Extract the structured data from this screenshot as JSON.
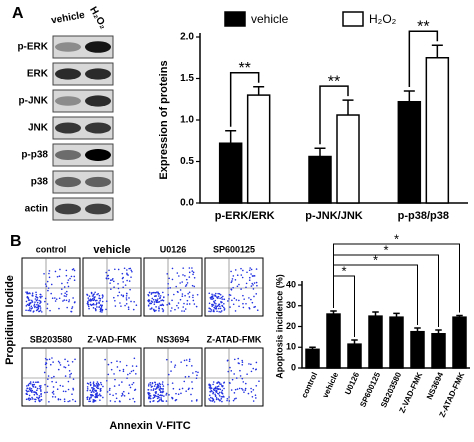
{
  "panel_a": {
    "label": "A",
    "lanes": [
      "vehicle",
      "H₂O₂"
    ],
    "rows": [
      "p-ERK",
      "ERK",
      "p-JNK",
      "JNK",
      "p-p38",
      "p38",
      "actin"
    ]
  },
  "panel_b": {
    "label": "B",
    "plots": [
      "control",
      "vehicle",
      "U0126",
      "SP600125",
      "SB203580",
      "Z-VAD-FMK",
      "NS3694",
      "Z-ATAD-FMK"
    ],
    "y_label": "Propidium Iodide",
    "x_label": "Annexin V-FITC"
  },
  "chart_data": [
    {
      "type": "bar",
      "y_label": "Expression of proteins",
      "categories": [
        "p-ERK/ERK",
        "p-JNK/JNK",
        "p-p38/p38"
      ],
      "series": [
        {
          "name": "vehicle",
          "color": "#000000",
          "values": [
            0.72,
            0.56,
            1.22
          ],
          "errors": [
            0.15,
            0.1,
            0.13
          ]
        },
        {
          "name": "H₂O₂",
          "color": "#ffffff",
          "values": [
            1.3,
            1.06,
            1.75
          ],
          "errors": [
            0.1,
            0.18,
            0.15
          ]
        }
      ],
      "ylim": [
        0,
        2
      ],
      "yticks": [
        {
          "value": 0,
          "label": "0.0"
        },
        0.5,
        {
          "value": 1,
          "label": "1.0"
        },
        1.5,
        {
          "value": 2,
          "label": "2.0"
        }
      ],
      "annotations": [
        {
          "text": "**"
        },
        {
          "text": "**"
        },
        {
          "text": "**"
        }
      ]
    },
    {
      "type": "bar",
      "y_label": "Apoptosis incidence (%)",
      "categories": [
        "control",
        "vehicle",
        "U0126",
        "SP600125",
        "SB203580",
        "Z-VAD-FMK",
        "NS3694",
        "Z-ATAD-FMK"
      ],
      "series": [
        {
          "color": "#000000",
          "values": [
            9,
            26,
            11.5,
            25,
            24.5,
            17.5,
            16.5,
            24.5
          ],
          "errors": [
            1,
            1.5,
            2,
            2,
            1.8,
            1.8,
            1.8,
            0.8
          ]
        }
      ],
      "ylim": [
        0,
        40
      ],
      "yticks": [
        0,
        10,
        20,
        30,
        40
      ],
      "annotations": [
        {
          "text": "*"
        },
        {
          "text": "*"
        },
        {
          "text": "*"
        },
        {
          "text": "*"
        }
      ]
    }
  ]
}
